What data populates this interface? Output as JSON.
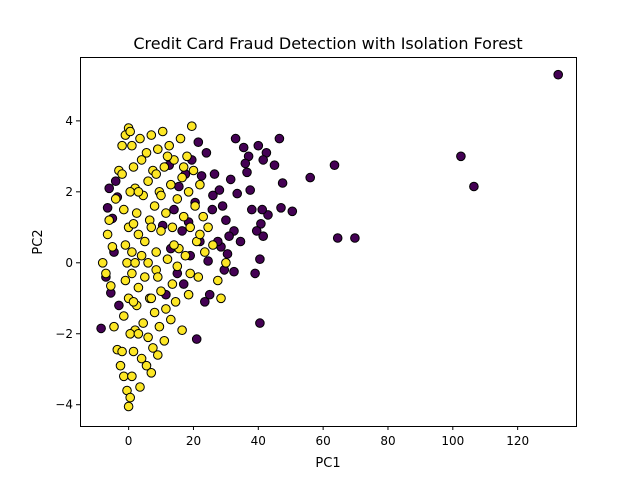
{
  "chart_data": {
    "type": "scatter",
    "title": "Credit Card Fraud Detection with Isolation Forest",
    "xlabel": "PC1",
    "ylabel": "PC2",
    "xlim": [
      -15,
      138
    ],
    "ylim": [
      -4.6,
      5.8
    ],
    "xticks": [
      0,
      20,
      40,
      60,
      80,
      100,
      120
    ],
    "xtick_labels": [
      "0",
      "20",
      "40",
      "60",
      "80",
      "100",
      "120"
    ],
    "yticks": [
      -4,
      -2,
      0,
      2,
      4
    ],
    "ytick_labels": [
      "−4",
      "−2",
      "0",
      "2",
      "4"
    ],
    "grid": false,
    "legend": "none",
    "colors": {
      "anomaly": "#440154",
      "normal": "#fde725"
    },
    "series": [
      {
        "color": "#440154",
        "points": [
          [
            132.5,
            5.3
          ],
          [
            102.5,
            3.0
          ],
          [
            106.5,
            2.15
          ],
          [
            69.8,
            0.7
          ],
          [
            64.5,
            0.7
          ],
          [
            63.5,
            2.75
          ],
          [
            56.0,
            2.4
          ],
          [
            50.5,
            1.45
          ],
          [
            47.5,
            2.25
          ],
          [
            46.5,
            3.5
          ],
          [
            47.0,
            1.55
          ],
          [
            45.0,
            2.75
          ],
          [
            43.0,
            1.35
          ],
          [
            42.5,
            3.1
          ],
          [
            41.5,
            2.9
          ],
          [
            41.2,
            1.5
          ],
          [
            40.5,
            0.1
          ],
          [
            40.5,
            -1.7
          ],
          [
            41.5,
            0.75
          ],
          [
            40.8,
            1.1
          ],
          [
            40.0,
            3.3
          ],
          [
            39.5,
            0.9
          ],
          [
            39.0,
            -0.3
          ],
          [
            38.0,
            1.5
          ],
          [
            37.5,
            2.05
          ],
          [
            37.0,
            3.0
          ],
          [
            36.5,
            2.55
          ],
          [
            36.0,
            2.8
          ],
          [
            35.5,
            3.25
          ],
          [
            34.5,
            0.6
          ],
          [
            33.5,
            1.95
          ],
          [
            33.0,
            3.5
          ],
          [
            32.5,
            0.9
          ],
          [
            32.5,
            -0.25
          ],
          [
            31.5,
            2.35
          ],
          [
            31.0,
            0.75
          ],
          [
            30.5,
            0.25
          ],
          [
            30.0,
            1.2
          ],
          [
            29.5,
            -0.2
          ],
          [
            29.0,
            1.6
          ],
          [
            28.5,
            0.45
          ],
          [
            28.0,
            2.05
          ],
          [
            27.5,
            0.6
          ],
          [
            26.5,
            2.5
          ],
          [
            26.0,
            1.9
          ],
          [
            25.8,
            1.5
          ],
          [
            25.0,
            -0.9
          ],
          [
            24.5,
            0.05
          ],
          [
            24.0,
            3.1
          ],
          [
            23.5,
            -1.1
          ],
          [
            22.5,
            2.45
          ],
          [
            22.0,
            0.6
          ],
          [
            21.5,
            3.4
          ],
          [
            21.0,
            -2.15
          ],
          [
            20.5,
            1.7
          ],
          [
            19.5,
            2.9
          ],
          [
            19.0,
            0.2
          ],
          [
            18.5,
            1.15
          ],
          [
            17.5,
            2.5
          ],
          [
            17.0,
            -0.6
          ],
          [
            16.5,
            0.9
          ],
          [
            15.5,
            2.15
          ],
          [
            15.0,
            -0.3
          ],
          [
            14.0,
            1.5
          ],
          [
            13.0,
            0.4
          ],
          [
            12.5,
            2.75
          ],
          [
            11.5,
            -0.9
          ],
          [
            10.5,
            1.05
          ],
          [
            -8.5,
            -1.85
          ],
          [
            -7.0,
            -0.4
          ],
          [
            -6.5,
            1.55
          ],
          [
            -6.0,
            2.1
          ],
          [
            -5.5,
            -0.85
          ],
          [
            -5.0,
            1.25
          ],
          [
            -4.5,
            0.3
          ],
          [
            -4.0,
            2.3
          ],
          [
            -3.5,
            1.85
          ],
          [
            -3.0,
            -1.2
          ]
        ]
      },
      {
        "color": "#fde725",
        "points": [
          [
            -8.0,
            0.0
          ],
          [
            -7.0,
            -0.3
          ],
          [
            -6.5,
            0.8
          ],
          [
            -6.0,
            1.2
          ],
          [
            -5.5,
            -0.65
          ],
          [
            -5.0,
            0.45
          ],
          [
            -4.5,
            -1.8
          ],
          [
            -4.0,
            1.8
          ],
          [
            -3.5,
            -2.45
          ],
          [
            -3.0,
            2.6
          ],
          [
            -2.5,
            -2.9
          ],
          [
            -2.0,
            3.3
          ],
          [
            -1.5,
            -3.2
          ],
          [
            -1.0,
            3.6
          ],
          [
            -0.5,
            -3.6
          ],
          [
            0.0,
            3.8
          ],
          [
            0.0,
            -4.05
          ],
          [
            0.5,
            3.7
          ],
          [
            0.5,
            -3.8
          ],
          [
            1.0,
            3.3
          ],
          [
            1.0,
            -3.2
          ],
          [
            1.5,
            2.7
          ],
          [
            1.5,
            -2.5
          ],
          [
            2.0,
            2.1
          ],
          [
            2.0,
            -1.9
          ],
          [
            2.5,
            1.4
          ],
          [
            2.5,
            -1.2
          ],
          [
            3.0,
            0.8
          ],
          [
            3.0,
            -0.7
          ],
          [
            3.5,
            3.5
          ],
          [
            3.5,
            -3.5
          ],
          [
            4.0,
            2.9
          ],
          [
            4.0,
            -2.7
          ],
          [
            4.5,
            1.9
          ],
          [
            4.5,
            -1.7
          ],
          [
            5.0,
            0.6
          ],
          [
            5.0,
            -0.4
          ],
          [
            5.5,
            3.1
          ],
          [
            5.5,
            -2.9
          ],
          [
            6.0,
            2.3
          ],
          [
            6.0,
            -2.1
          ],
          [
            6.5,
            1.2
          ],
          [
            6.5,
            -1.0
          ],
          [
            7.0,
            3.6
          ],
          [
            7.0,
            -3.1
          ],
          [
            7.5,
            2.6
          ],
          [
            7.5,
            -2.4
          ],
          [
            8.0,
            1.6
          ],
          [
            8.0,
            -1.4
          ],
          [
            8.5,
            0.3
          ],
          [
            8.5,
            -0.2
          ],
          [
            9.0,
            3.2
          ],
          [
            9.0,
            -2.6
          ],
          [
            9.5,
            2.0
          ],
          [
            9.5,
            -1.8
          ],
          [
            10.0,
            0.9
          ],
          [
            10.0,
            -0.8
          ],
          [
            10.5,
            3.7
          ],
          [
            11.0,
            2.7
          ],
          [
            11.0,
            -2.2
          ],
          [
            11.5,
            1.4
          ],
          [
            11.5,
            -1.3
          ],
          [
            12.0,
            0.1
          ],
          [
            12.5,
            3.3
          ],
          [
            13.0,
            2.2
          ],
          [
            13.0,
            -1.6
          ],
          [
            13.5,
            1.0
          ],
          [
            13.5,
            -0.6
          ],
          [
            14.0,
            2.9
          ],
          [
            14.5,
            -1.1
          ],
          [
            15.0,
            1.8
          ],
          [
            15.5,
            0.4
          ],
          [
            16.0,
            3.5
          ],
          [
            16.5,
            2.4
          ],
          [
            16.5,
            -1.9
          ],
          [
            17.0,
            1.3
          ],
          [
            17.5,
            0.2
          ],
          [
            18.0,
            3.0
          ],
          [
            18.5,
            2.0
          ],
          [
            18.5,
            -0.9
          ],
          [
            19.0,
            1.0
          ],
          [
            19.5,
            3.85
          ],
          [
            20.0,
            2.6
          ],
          [
            20.5,
            1.6
          ],
          [
            21.0,
            0.6
          ],
          [
            21.5,
            -0.4
          ],
          [
            22.0,
            2.2
          ],
          [
            23.0,
            1.3
          ],
          [
            23.5,
            0.3
          ],
          [
            24.5,
            1.0
          ],
          [
            26.0,
            0.5
          ],
          [
            27.5,
            -0.5
          ],
          [
            28.5,
            -1.0
          ],
          [
            30.0,
            0.0
          ],
          [
            -0.5,
            0.0
          ],
          [
            0.0,
            1.0
          ],
          [
            0.0,
            -1.0
          ],
          [
            0.5,
            2.0
          ],
          [
            0.5,
            -2.0
          ],
          [
            -1.0,
            0.5
          ],
          [
            -1.0,
            -0.5
          ],
          [
            -1.5,
            1.5
          ],
          [
            -1.5,
            -1.5
          ],
          [
            -2.0,
            2.5
          ],
          [
            -2.0,
            -2.5
          ],
          [
            1.0,
            0.3
          ],
          [
            1.0,
            -0.3
          ],
          [
            1.5,
            1.1
          ],
          [
            1.5,
            -1.1
          ],
          [
            2.0,
            0.0
          ],
          [
            3.0,
            2.0
          ],
          [
            3.0,
            -2.0
          ],
          [
            4.0,
            0.2
          ],
          [
            6.0,
            0.0
          ],
          [
            7.0,
            1.0
          ],
          [
            7.0,
            -1.0
          ],
          [
            8.5,
            2.5
          ],
          [
            9.0,
            -0.4
          ],
          [
            10.0,
            1.9
          ],
          [
            12.0,
            3.0
          ],
          [
            14.0,
            0.5
          ],
          [
            15.0,
            -0.1
          ],
          [
            17.0,
            2.7
          ],
          [
            19.0,
            -0.3
          ],
          [
            22.0,
            0.8
          ]
        ]
      }
    ]
  }
}
